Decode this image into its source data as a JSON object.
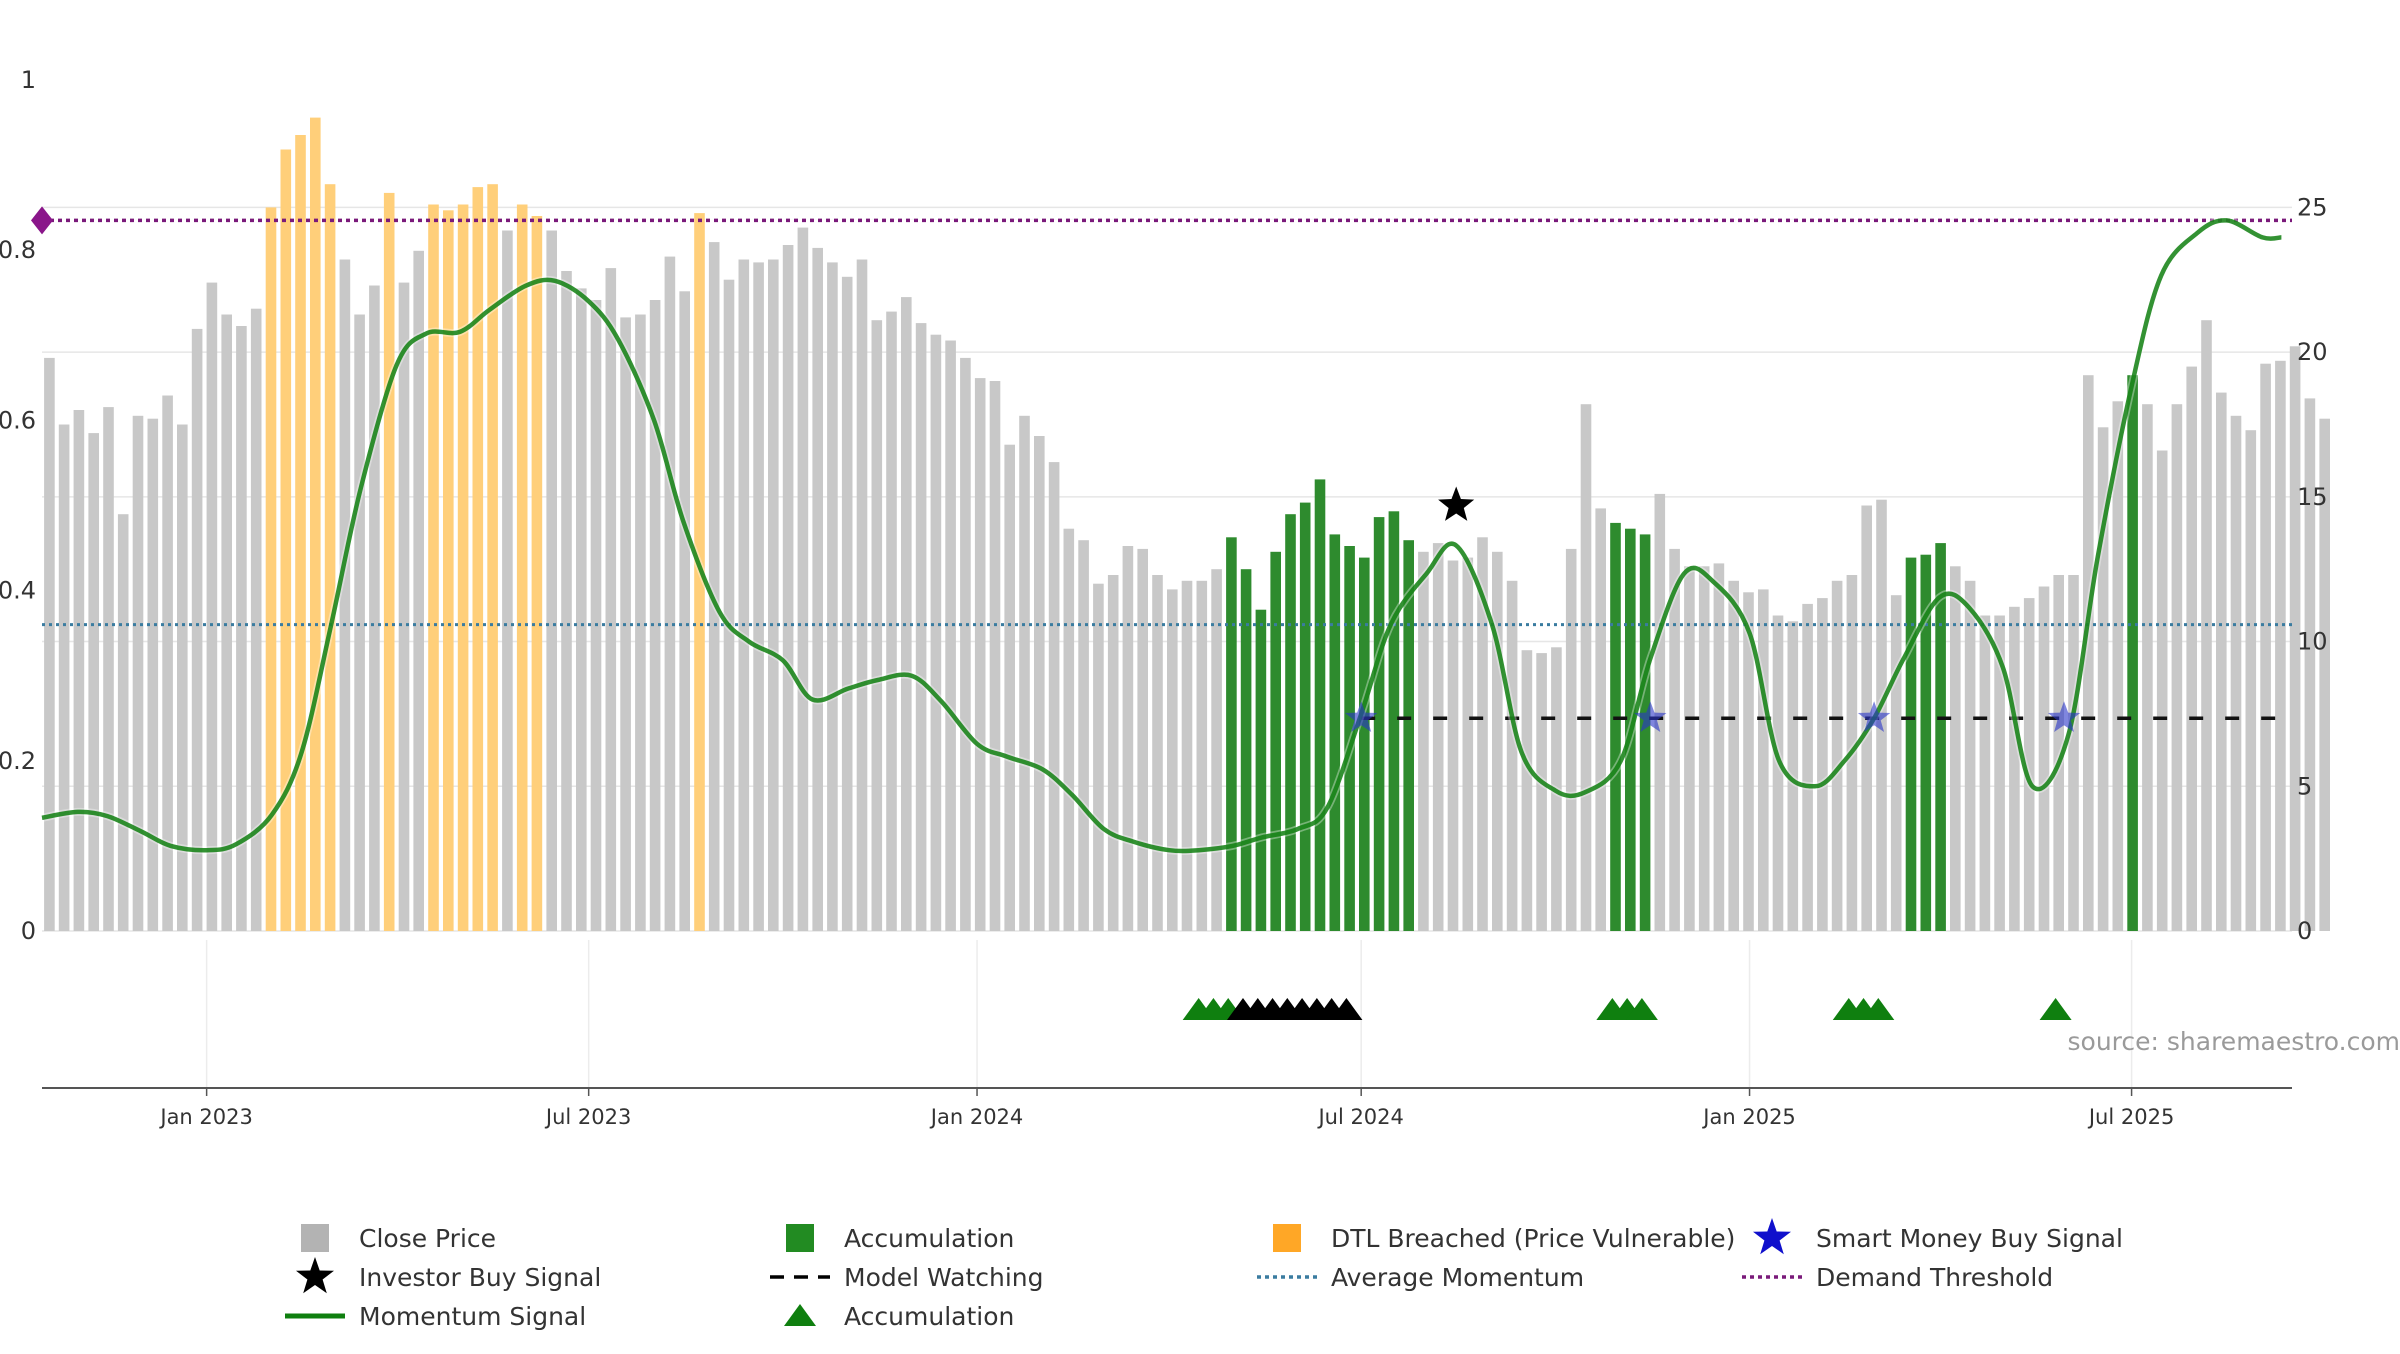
{
  "chart_data": {
    "type": "bar",
    "source_label": "source: sharemaestro.com",
    "left_axis": {
      "min": 0,
      "max": 1,
      "ticks": [
        0,
        0.2,
        0.4,
        0.6,
        0.8,
        1
      ],
      "tick_labels": [
        "0",
        "0.2",
        "0.4",
        "0.6",
        "0.8",
        "1"
      ]
    },
    "right_axis": {
      "min": 0,
      "max": 29.4,
      "ticks": [
        0,
        5,
        10,
        15,
        20,
        25
      ],
      "tick_labels": [
        "0",
        "5",
        "10",
        "15",
        "20",
        "25"
      ]
    },
    "x_axis": {
      "start": "2022-10-15",
      "end": "2025-09-15",
      "ticks": [
        "2023-01-01",
        "2023-07-01",
        "2024-01-01",
        "2024-07-01",
        "2025-01-01",
        "2025-07-01"
      ],
      "tick_labels": [
        "Jan 2023",
        "Jul 2023",
        "Jan 2024",
        "Jul 2024",
        "Jan 2025",
        "Jul 2025"
      ]
    },
    "bar_start": "2022-10-15",
    "bar_step_days": 7,
    "close_price": [
      19.8,
      17.5,
      18.0,
      17.2,
      18.1,
      14.4,
      17.8,
      17.7,
      18.5,
      17.5,
      20.8,
      22.4,
      21.3,
      20.9,
      21.5,
      25.0,
      27.0,
      27.5,
      28.1,
      25.8,
      23.2,
      21.3,
      22.3,
      25.5,
      22.4,
      23.5,
      25.1,
      24.9,
      25.1,
      25.7,
      25.8,
      24.2,
      25.1,
      24.7,
      24.2,
      22.8,
      22.2,
      21.8,
      22.9,
      21.2,
      21.3,
      21.8,
      23.3,
      22.1,
      24.8,
      23.8,
      22.5,
      23.2,
      23.1,
      23.2,
      23.7,
      24.3,
      23.6,
      23.1,
      22.6,
      23.2,
      21.1,
      21.4,
      21.9,
      21.0,
      20.6,
      20.4,
      19.8,
      19.1,
      19.0,
      16.8,
      17.8,
      17.1,
      16.2,
      13.9,
      13.5,
      12.0,
      12.3,
      13.3,
      13.2,
      12.3,
      11.8,
      12.1,
      12.1,
      12.5,
      13.6,
      12.5,
      11.1,
      13.1,
      14.4,
      14.8,
      15.6,
      13.7,
      13.3,
      12.9,
      14.3,
      14.5,
      13.5,
      13.1,
      13.4,
      12.8,
      12.9,
      13.6,
      13.1,
      12.1,
      9.7,
      9.6,
      9.8,
      13.2,
      18.2,
      14.6,
      14.1,
      13.9,
      13.7,
      15.1,
      13.2,
      12.6,
      12.6,
      12.7,
      12.1,
      11.7,
      11.8,
      10.9,
      10.7,
      11.3,
      11.5,
      12.1,
      12.3,
      14.7,
      14.9,
      11.6,
      12.9,
      13.0,
      13.4,
      12.6,
      12.1,
      10.9,
      10.9,
      11.2,
      11.5,
      11.9,
      12.3,
      12.3,
      19.2,
      17.4,
      18.3,
      19.2,
      18.2,
      16.6,
      18.2,
      19.5,
      21.1,
      18.6,
      17.8,
      17.3,
      19.6,
      19.7,
      20.2,
      18.4,
      17.7
    ],
    "bar_category_codes": [
      0,
      0,
      0,
      0,
      0,
      0,
      0,
      0,
      0,
      0,
      0,
      0,
      0,
      0,
      0,
      2,
      2,
      2,
      2,
      2,
      0,
      0,
      0,
      2,
      0,
      0,
      2,
      2,
      2,
      2,
      2,
      0,
      2,
      2,
      0,
      0,
      0,
      0,
      0,
      0,
      0,
      0,
      0,
      0,
      2,
      0,
      0,
      0,
      0,
      0,
      0,
      0,
      0,
      0,
      0,
      0,
      0,
      0,
      0,
      0,
      0,
      0,
      0,
      0,
      0,
      0,
      0,
      0,
      0,
      0,
      0,
      0,
      0,
      0,
      0,
      0,
      0,
      0,
      0,
      0,
      1,
      1,
      1,
      1,
      1,
      1,
      1,
      1,
      1,
      1,
      1,
      1,
      1,
      0,
      0,
      0,
      0,
      0,
      0,
      0,
      0,
      0,
      0,
      0,
      0,
      0,
      1,
      1,
      1,
      0,
      0,
      0,
      0,
      0,
      0,
      0,
      0,
      0,
      0,
      0,
      0,
      0,
      0,
      0,
      0,
      0,
      1,
      1,
      1,
      0,
      0,
      0,
      0,
      0,
      0,
      0,
      0,
      0,
      0,
      0,
      0,
      1,
      0,
      0,
      0,
      0,
      0,
      0,
      0,
      0,
      0,
      0,
      0,
      0,
      0,
      0,
      0,
      0,
      0
    ],
    "bar_category_names": [
      "Close Price",
      "Accumulation",
      "DTL Breached (Price Vulnerable)"
    ],
    "momentum": [
      [
        "2022-10-15",
        0.133
      ],
      [
        "2022-11-01",
        0.14
      ],
      [
        "2022-11-15",
        0.135
      ],
      [
        "2022-12-01",
        0.117
      ],
      [
        "2022-12-15",
        0.1
      ],
      [
        "2023-01-01",
        0.095
      ],
      [
        "2023-01-15",
        0.102
      ],
      [
        "2023-02-01",
        0.137
      ],
      [
        "2023-02-15",
        0.21
      ],
      [
        "2023-03-01",
        0.36
      ],
      [
        "2023-03-15",
        0.52
      ],
      [
        "2023-04-01",
        0.665
      ],
      [
        "2023-04-15",
        0.702
      ],
      [
        "2023-05-01",
        0.704
      ],
      [
        "2023-05-15",
        0.73
      ],
      [
        "2023-06-01",
        0.758
      ],
      [
        "2023-06-15",
        0.764
      ],
      [
        "2023-07-01",
        0.74
      ],
      [
        "2023-07-15",
        0.695
      ],
      [
        "2023-08-01",
        0.6
      ],
      [
        "2023-08-15",
        0.48
      ],
      [
        "2023-09-01",
        0.375
      ],
      [
        "2023-09-15",
        0.34
      ],
      [
        "2023-10-01",
        0.318
      ],
      [
        "2023-10-15",
        0.272
      ],
      [
        "2023-11-01",
        0.285
      ],
      [
        "2023-11-15",
        0.295
      ],
      [
        "2023-12-01",
        0.3
      ],
      [
        "2023-12-15",
        0.27
      ],
      [
        "2024-01-01",
        0.22
      ],
      [
        "2024-01-15",
        0.205
      ],
      [
        "2024-02-01",
        0.19
      ],
      [
        "2024-02-15",
        0.16
      ],
      [
        "2024-03-01",
        0.12
      ],
      [
        "2024-03-15",
        0.105
      ],
      [
        "2024-04-01",
        0.095
      ],
      [
        "2024-04-15",
        0.095
      ],
      [
        "2024-05-01",
        0.1
      ],
      [
        "2024-05-15",
        0.11
      ],
      [
        "2024-06-01",
        0.12
      ],
      [
        "2024-06-15",
        0.145
      ],
      [
        "2024-07-01",
        0.255
      ],
      [
        "2024-07-15",
        0.36
      ],
      [
        "2024-08-01",
        0.42
      ],
      [
        "2024-08-15",
        0.453
      ],
      [
        "2024-09-01",
        0.36
      ],
      [
        "2024-09-15",
        0.21
      ],
      [
        "2024-10-01",
        0.165
      ],
      [
        "2024-10-15",
        0.163
      ],
      [
        "2024-11-01",
        0.2
      ],
      [
        "2024-11-15",
        0.32
      ],
      [
        "2024-12-01",
        0.42
      ],
      [
        "2024-12-15",
        0.41
      ],
      [
        "2025-01-01",
        0.35
      ],
      [
        "2025-01-15",
        0.2
      ],
      [
        "2025-02-01",
        0.17
      ],
      [
        "2025-02-15",
        0.2
      ],
      [
        "2025-03-01",
        0.25
      ],
      [
        "2025-03-15",
        0.32
      ],
      [
        "2025-04-01",
        0.392
      ],
      [
        "2025-04-15",
        0.38
      ],
      [
        "2025-05-01",
        0.31
      ],
      [
        "2025-05-15",
        0.17
      ],
      [
        "2025-06-01",
        0.23
      ],
      [
        "2025-06-15",
        0.44
      ],
      [
        "2025-07-01",
        0.64
      ],
      [
        "2025-07-15",
        0.77
      ],
      [
        "2025-08-01",
        0.82
      ],
      [
        "2025-08-15",
        0.835
      ],
      [
        "2025-09-01",
        0.815
      ],
      [
        "2025-09-10",
        0.815
      ]
    ],
    "average_momentum": 0.36,
    "demand_threshold": 0.835,
    "model_watching": {
      "start": "2024-07-01",
      "end": "2025-09-15",
      "level": 0.25
    },
    "investor_buy_signal": [
      [
        "2024-08-15",
        0.5
      ]
    ],
    "smart_money_buy_signals": [
      [
        "2024-07-01",
        0.25
      ],
      [
        "2024-11-15",
        0.25
      ],
      [
        "2025-03-01",
        0.25
      ],
      [
        "2025-05-30",
        0.25
      ]
    ],
    "accumulation_markers": [
      [
        "2024-04-15",
        "green"
      ],
      [
        "2024-04-22",
        "green"
      ],
      [
        "2024-04-29",
        "green"
      ],
      [
        "2024-05-06",
        "black"
      ],
      [
        "2024-05-13",
        "black"
      ],
      [
        "2024-05-20",
        "black"
      ],
      [
        "2024-05-27",
        "black"
      ],
      [
        "2024-06-03",
        "black"
      ],
      [
        "2024-06-10",
        "black"
      ],
      [
        "2024-06-17",
        "black"
      ],
      [
        "2024-06-24",
        "black"
      ],
      [
        "2024-10-28",
        "green"
      ],
      [
        "2024-11-04",
        "green"
      ],
      [
        "2024-11-11",
        "green"
      ],
      [
        "2025-02-17",
        "green"
      ],
      [
        "2025-02-24",
        "green"
      ],
      [
        "2025-03-03",
        "green"
      ],
      [
        "2025-05-26",
        "green"
      ]
    ],
    "legend": [
      {
        "label": "Close Price",
        "symbol": "square",
        "color": "#b3b3b3"
      },
      {
        "label": "Accumulation",
        "symbol": "square",
        "color": "#228b22"
      },
      {
        "label": "DTL Breached (Price Vulnerable)",
        "symbol": "square",
        "color": "#ffa726"
      },
      {
        "label": "Smart Money Buy Signal",
        "symbol": "star",
        "color": "#1010cc"
      },
      {
        "label": "Investor Buy Signal",
        "symbol": "star",
        "color": "#000000"
      },
      {
        "label": "Model Watching",
        "symbol": "dash",
        "color": "#000000"
      },
      {
        "label": "Average Momentum",
        "symbol": "dot",
        "color": "#3a7ca0"
      },
      {
        "label": "Demand Threshold",
        "symbol": "dot",
        "color": "#7a1a7a"
      },
      {
        "label": "Momentum Signal",
        "symbol": "line",
        "color": "#0f7f0f"
      },
      {
        "label": "Accumulation",
        "symbol": "triangle",
        "color": "#0f7f0f"
      }
    ],
    "colors": {
      "close": "#c8c8c8",
      "accumulation": "#2e8b2e",
      "dtl": "#ffcf7a",
      "momentum": "#0f7f0f",
      "average": "#3a7ca0",
      "threshold": "#7a1a7a",
      "smart_money": "#2a35c8",
      "grid": "#e6e6e6",
      "axis": "#555555"
    }
  }
}
